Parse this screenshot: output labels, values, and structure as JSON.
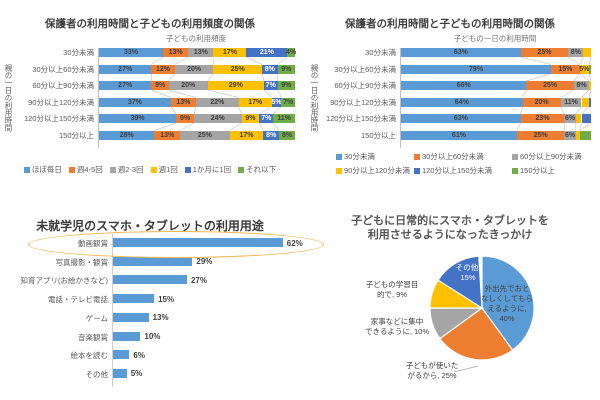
{
  "palette": {
    "blue": "#5B9BD5",
    "orange": "#ED7D31",
    "gray": "#A5A5A5",
    "yellow": "#FFC000",
    "darkblue": "#4472C4",
    "green": "#70AD47",
    "highlight_ellipse": "#F0B752",
    "bar_label_dark": "#404040",
    "bar_label_light": "#FFFFFF"
  },
  "chart_data": [
    {
      "type": "bar",
      "orientation": "horizontal",
      "stacked_percent": true,
      "title": "保護者の利用時間と子どもの利用頻度の関係",
      "plot_title": "子どもの利用頻度",
      "ylabel": "親の一日の利用時間",
      "xlim": [
        0,
        100
      ],
      "legend_position": "bottom",
      "categories": [
        "30分未満",
        "30分以上60分未満",
        "60分以上90分未満",
        "90分以上120分未満",
        "120分以上150分未満",
        "150分以上"
      ],
      "series": [
        {
          "name": "ほぼ毎日",
          "color": "blue",
          "values": [
            33,
            27,
            27,
            37,
            39,
            28
          ]
        },
        {
          "name": "週4-5回",
          "color": "orange",
          "values": [
            13,
            12,
            9,
            13,
            9,
            13
          ]
        },
        {
          "name": "週2-3回",
          "color": "gray",
          "values": [
            13,
            20,
            20,
            22,
            24,
            25
          ]
        },
        {
          "name": "週1回",
          "color": "yellow",
          "values": [
            17,
            25,
            29,
            17,
            9,
            17
          ]
        },
        {
          "name": "1か月に1回",
          "color": "darkblue",
          "values": [
            21,
            8,
            7,
            5,
            7,
            8
          ]
        },
        {
          "name": "それ以下",
          "color": "green",
          "values": [
            4,
            9,
            9,
            7,
            11,
            8
          ]
        }
      ]
    },
    {
      "type": "bar",
      "orientation": "horizontal",
      "stacked_percent": true,
      "title": "保護者の利用時間と子どもの利用時間の関係",
      "plot_title": "子どもの一日の利用時間",
      "ylabel": "親の一日の利用時間",
      "xlim": [
        0,
        100
      ],
      "legend_position": "bottom",
      "categories": [
        "30分未満",
        "30分以上60分未満",
        "60分以上90分未満",
        "90分以上120分未満",
        "120分以上150分未満",
        "150分以上"
      ],
      "series": [
        {
          "name": "30分未満",
          "color": "blue",
          "values": [
            63,
            79,
            66,
            64,
            63,
            61
          ]
        },
        {
          "name": "30分以上60分未満",
          "color": "orange",
          "values": [
            25,
            15,
            25,
            20,
            23,
            25
          ]
        },
        {
          "name": "60分以上90分未満",
          "color": "gray",
          "values": [
            8,
            0,
            8,
            11,
            6,
            6
          ]
        },
        {
          "name": "90分以上120分未満",
          "color": "yellow",
          "values": [
            4,
            5,
            1,
            4,
            3,
            2
          ]
        },
        {
          "name": "120分以上150分未満",
          "color": "darkblue",
          "values": [
            0,
            0,
            0,
            1,
            5,
            0
          ]
        },
        {
          "name": "150分以上",
          "color": "green",
          "values": [
            0,
            1,
            0,
            0,
            0,
            6
          ]
        }
      ],
      "labels": [
        [
          "63%",
          "25%",
          "8%",
          "",
          "",
          ""
        ],
        [
          "79%",
          "15%",
          "",
          "5%",
          "",
          ""
        ],
        [
          "66%",
          "25%",
          "8%",
          "",
          "",
          ""
        ],
        [
          "64%",
          "20%",
          "11%",
          "",
          "",
          ""
        ],
        [
          "63%",
          "23%",
          "6%",
          "",
          "",
          ""
        ],
        [
          "61%",
          "25%",
          "6%",
          "",
          "",
          ""
        ]
      ]
    },
    {
      "type": "bar",
      "orientation": "horizontal",
      "title": "未就学児のスマホ・タブレットの利用用途",
      "categories": [
        "動画観賞",
        "写真撮影・観賞",
        "知育アプリ(お絵かきなど)",
        "電話・テレビ電話",
        "ゲーム",
        "音楽観賞",
        "絵本を読む",
        "その他"
      ],
      "values": [
        62,
        29,
        27,
        15,
        13,
        10,
        6,
        5
      ],
      "bar_color": "blue",
      "xmax": 65,
      "highlighted_category": "動画観賞"
    },
    {
      "type": "pie",
      "title_lines": [
        "子どもに日常的にスマホ・タブレットを",
        "利用させるようになったきっかけ"
      ],
      "start_angle_deg": 0,
      "clockwise": true,
      "slices": [
        {
          "label": "外出先でおとなしくしてもらえるように",
          "pct": 40,
          "color": "blue",
          "lines": [
            "外出先でおと",
            "なしくしてもら",
            "えるように,",
            "40%"
          ]
        },
        {
          "label": "子どもが使いたがるから",
          "pct": 25,
          "color": "orange",
          "lines": [
            "子どもが使いた",
            "がるから, 25%"
          ]
        },
        {
          "label": "家事などに集中できるように",
          "pct": 10,
          "color": "gray",
          "lines": [
            "家事などに集中",
            "できるように, 10%"
          ]
        },
        {
          "label": "子どもの学習目的で",
          "pct": 9,
          "color": "yellow",
          "lines": [
            "子どもの学習目",
            "的で, 9%"
          ]
        },
        {
          "label": "その他",
          "pct": 15,
          "color": "darkblue",
          "lines": [
            "その他,",
            "15%"
          ]
        }
      ]
    }
  ]
}
